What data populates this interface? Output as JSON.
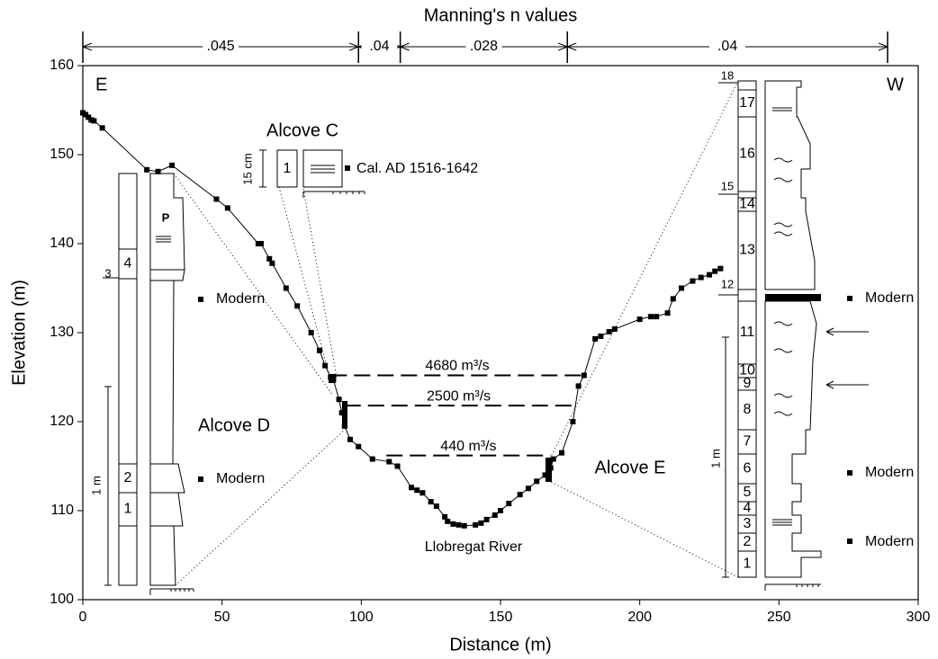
{
  "chart_data": {
    "type": "line",
    "title": "Manning's n values",
    "x_label": "Distance (m)",
    "y_label": "Elevation (m)",
    "xlim": [
      0,
      300
    ],
    "xticks": [
      0,
      50,
      100,
      150,
      200,
      250,
      300
    ],
    "ylim": [
      100,
      160
    ],
    "yticks": [
      100,
      110,
      120,
      130,
      140,
      150,
      160
    ],
    "color": "#000000",
    "x": [
      0,
      1,
      2,
      3,
      4,
      7,
      23,
      27,
      32,
      48,
      52,
      63,
      64,
      67,
      68,
      73,
      77,
      82,
      85,
      87,
      89,
      90,
      92,
      93,
      94,
      96,
      99,
      104,
      110,
      113,
      118,
      120,
      122,
      125,
      127,
      130,
      131,
      133,
      135,
      137,
      141,
      143,
      145,
      148,
      150,
      153,
      157,
      160,
      163,
      166,
      168,
      169,
      172,
      176,
      178,
      180,
      184,
      186,
      189,
      191,
      200,
      204,
      206,
      210,
      212,
      215,
      219,
      222,
      225,
      227,
      229
    ],
    "values": [
      154.7,
      154.5,
      154.2,
      153.9,
      153.8,
      153,
      148.3,
      148.1,
      148.8,
      145,
      144,
      140,
      140,
      138.3,
      137.8,
      135,
      133,
      130,
      128,
      126.3,
      125,
      124.7,
      122.5,
      121,
      119.5,
      118,
      117.2,
      115.8,
      115.5,
      115,
      112.6,
      112.3,
      112,
      111,
      110.5,
      109.3,
      108.8,
      108.5,
      108.4,
      108.3,
      108.4,
      108.6,
      109,
      109.5,
      110,
      110.8,
      111.8,
      112.5,
      113.3,
      114,
      114.8,
      115.8,
      116.5,
      120,
      124,
      125.2,
      129.3,
      129.6,
      130.1,
      130.4,
      131.5,
      131.8,
      131.8,
      132.2,
      133.8,
      135,
      135.8,
      136.2,
      136.5,
      136.9,
      137.2
    ],
    "manning": {
      "bounds": [
        0,
        99,
        114,
        174,
        289
      ],
      "labels": [
        ".045",
        ".04",
        ".028",
        ".04"
      ]
    },
    "discharges": [
      {
        "label": "4680 m³/s",
        "y": 125.2,
        "x": [
          89,
          180
        ]
      },
      {
        "label": "2500 m³/s",
        "y": 121.8,
        "x": [
          94,
          176
        ]
      },
      {
        "label": "440 m³/s",
        "y": 116.2,
        "x": [
          109,
          168
        ]
      }
    ],
    "annotations": {
      "east": "E",
      "west": "W",
      "river": "Llobregat River"
    },
    "alcove_c": {
      "label": "Alcove C",
      "units": [
        "1"
      ],
      "scale": "15 cm",
      "date": "Cal. AD 1516-1642"
    },
    "alcove_d": {
      "label": "Alcove D",
      "units": [
        "1",
        "2",
        "3",
        "4"
      ],
      "scale": "1 m",
      "ages": [
        "Modern",
        "Modern"
      ]
    },
    "alcove_e": {
      "label": "Alcove E",
      "units": [
        "1",
        "2",
        "3",
        "4",
        "5",
        "6",
        "7",
        "8",
        "9",
        "10",
        "11",
        "12",
        "13",
        "14",
        "15",
        "16",
        "17",
        "18"
      ],
      "scale": "1 m",
      "ages": [
        "Modern",
        "Modern",
        "Modern"
      ]
    }
  }
}
